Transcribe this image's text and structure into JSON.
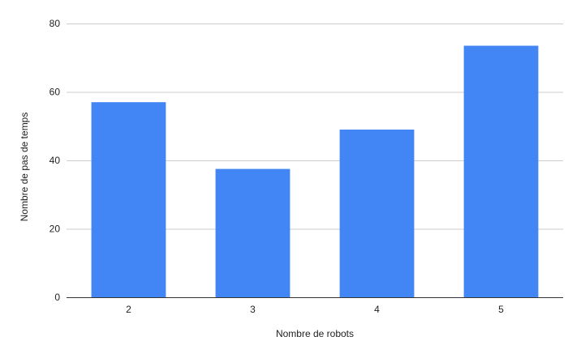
{
  "chart_data": {
    "type": "bar",
    "title": "",
    "xlabel": "Nombre de robots",
    "ylabel": "Nombre de pas de temps",
    "categories": [
      "2",
      "3",
      "4",
      "5"
    ],
    "values": [
      57,
      37.5,
      49,
      73.5
    ],
    "ylim": [
      0,
      80
    ],
    "yticks": [
      "0",
      "20",
      "40",
      "60",
      "80"
    ],
    "ytick_values": [
      0,
      20,
      40,
      60,
      80
    ],
    "grid": true,
    "legend": "none",
    "colors": {
      "bar": "#4285f4",
      "grid": "#cccccc",
      "axis": "#333333"
    }
  }
}
